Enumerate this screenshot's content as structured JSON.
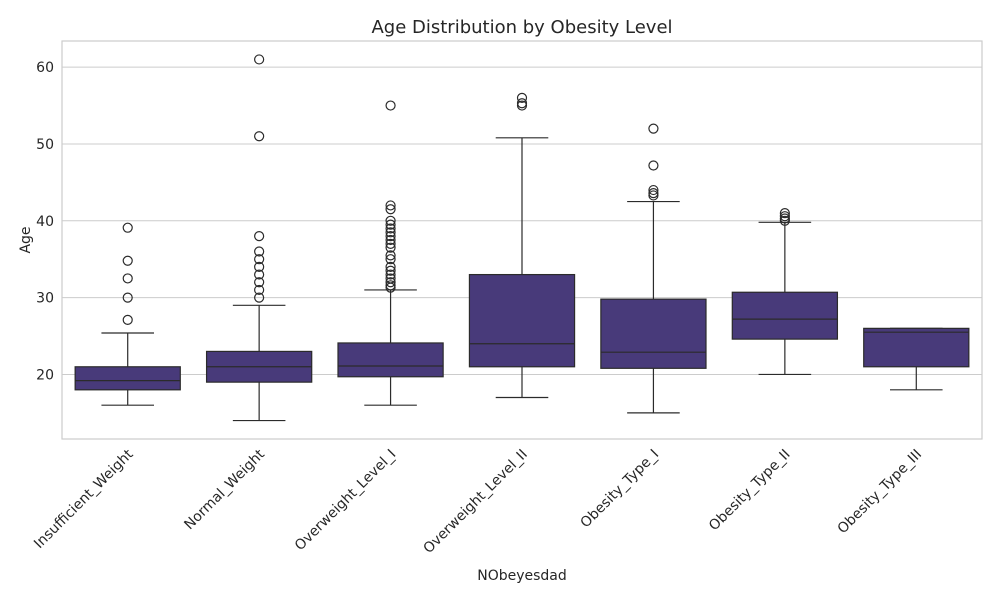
{
  "chart_data": {
    "type": "box",
    "title": "Age Distribution by Obesity Level",
    "xlabel": "NObeyesdad",
    "ylabel": "Age",
    "ylim": [
      11.6,
      63.4
    ],
    "yticks": [
      20,
      30,
      40,
      50,
      60
    ],
    "grid": "horizontal",
    "color": "#483a7a",
    "categories": [
      "Insufficient_Weight",
      "Normal_Weight",
      "Overweight_Level_I",
      "Overweight_Level_II",
      "Obesity_Type_I",
      "Obesity_Type_II",
      "Obesity_Type_III"
    ],
    "boxes": [
      {
        "whisker_low": 16,
        "q1": 18,
        "median": 19.2,
        "q3": 21,
        "whisker_high": 25.4,
        "outliers": [
          27.1,
          30,
          32.5,
          34.8,
          39.1
        ]
      },
      {
        "whisker_low": 14,
        "q1": 19,
        "median": 21,
        "q3": 23,
        "whisker_high": 29,
        "outliers": [
          30,
          31,
          32,
          33,
          34,
          35,
          36,
          38,
          51,
          61
        ]
      },
      {
        "whisker_low": 16,
        "q1": 19.7,
        "median": 21.1,
        "q3": 24.1,
        "whisker_high": 31,
        "outliers": [
          31.3,
          31.6,
          32,
          32.5,
          33,
          33.5,
          34,
          35,
          35.5,
          36.5,
          37,
          37.5,
          38,
          38.5,
          39,
          39.5,
          40,
          41.5,
          42,
          55
        ]
      },
      {
        "whisker_low": 17,
        "q1": 21,
        "median": 24,
        "q3": 33,
        "whisker_high": 50.8,
        "outliers": [
          55,
          55.3,
          56
        ]
      },
      {
        "whisker_low": 15,
        "q1": 20.8,
        "median": 22.9,
        "q3": 29.8,
        "whisker_high": 42.5,
        "outliers": [
          43.3,
          43.6,
          44,
          47.2,
          52
        ]
      },
      {
        "whisker_low": 20,
        "q1": 24.6,
        "median": 27.2,
        "q3": 30.7,
        "whisker_high": 39.8,
        "outliers": [
          40,
          40.3,
          40.6,
          41
        ]
      },
      {
        "whisker_low": 18,
        "q1": 21,
        "median": 25.5,
        "q3": 26,
        "whisker_high": 26,
        "outliers": []
      }
    ]
  }
}
